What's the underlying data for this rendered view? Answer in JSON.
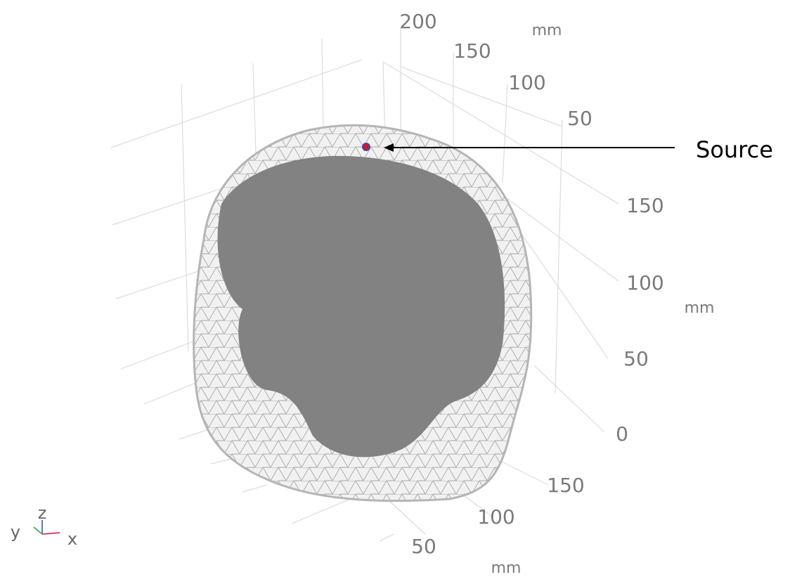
{
  "axes": {
    "top": {
      "ticks": [
        200,
        150,
        100,
        50
      ],
      "unit": "mm"
    },
    "right": {
      "ticks": [
        150,
        100,
        50,
        0
      ],
      "unit": "mm"
    },
    "bottom": {
      "ticks": [
        150,
        100,
        50
      ],
      "unit": "mm"
    }
  },
  "triad": {
    "y": "y",
    "z": "z",
    "x": "x"
  },
  "annotation": "Source"
}
